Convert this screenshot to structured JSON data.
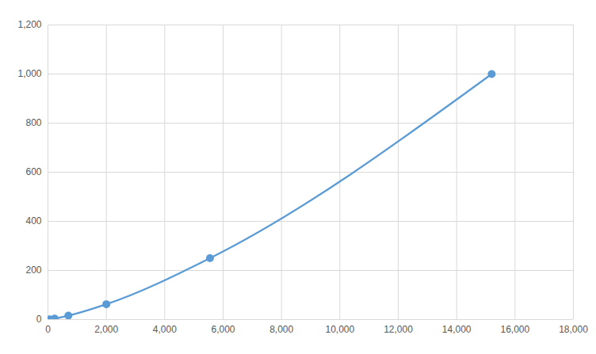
{
  "chart_data": {
    "type": "line",
    "x": [
      60,
      230,
      700,
      2000,
      5550,
      15200
    ],
    "values": [
      1,
      4,
      16,
      62.5,
      250,
      1000
    ],
    "color": "#5b9bd5",
    "marker": "circle",
    "line_style": "solid",
    "xlim": [
      0,
      18000
    ],
    "xticks": [
      0,
      2000,
      4000,
      6000,
      8000,
      10000,
      12000,
      14000,
      16000,
      18000
    ],
    "ylim": [
      0,
      1200
    ],
    "yticks": [
      0,
      200,
      400,
      600,
      800,
      1000,
      1200
    ],
    "grid": true
  }
}
